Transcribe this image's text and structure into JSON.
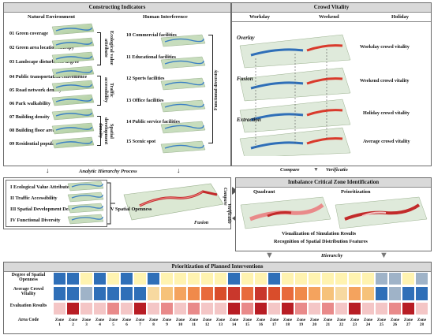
{
  "constructing": {
    "title": "Constructing Indicators",
    "natural_env": "Natural Environment",
    "human_interf": "Human Interference",
    "indicators_left": [
      "01 Green coverage",
      "02 Green area location entropy",
      "03 Landscape disturbance degree",
      "04 Public transportation convenience",
      "05 Road network density",
      "06 Park walkability",
      "07 Building density",
      "08 Building floor area ratio",
      "09 Residential population density"
    ],
    "indicators_right": [
      "10 Commercial facilities",
      "11 Educational facilities",
      "12 Sports facilities",
      "13 Office facilities",
      "14 Public service facilities",
      "15 Scenic spot"
    ],
    "group_ecological": "Ecological value attribute",
    "group_traffic": "Traffic accessibility",
    "group_spatial": "Spatial development density",
    "group_functional": "Functional diversity",
    "ahp": "Analytic Hierarchy Process",
    "dims": [
      "I  Ecological Value Attribute",
      "II  Traffic Accessibility",
      "III  Spatial Development Density",
      "IV  Functional Diversity"
    ],
    "openness": "V  Spatial Openness",
    "fusion": "Fusion"
  },
  "crowd": {
    "title": "Crowd Vitality",
    "workday": "Workday",
    "weekend": "Weekend",
    "holiday": "Holiday",
    "overlay": "Overlay",
    "fusion": "Fusion",
    "extraction": "Extraction",
    "labels": [
      "Workday crowd vitality",
      "Weekend crowd vitality",
      "Holiday crowd vitality",
      "Average crowd vitality"
    ],
    "compare": "Compare",
    "verification": "Verificatio"
  },
  "imbalance": {
    "title": "Imbalance Critical Zone Identification",
    "quadrant": "Quadrant",
    "prioritization": "Prioritization",
    "result1": "Visualization of Simulation Results",
    "result2": "Recognition of Spatial Distribution Features",
    "hierarchy": "Hierarchy"
  },
  "side": {
    "compare": "Compare",
    "verificatio": "Verificatio"
  },
  "table": {
    "title": "Prioritization of Planned Interventions",
    "row_labels": [
      "Degree of Spatial Openness",
      "Average Crowd Vitality",
      "Evaluation Results",
      "Area Code"
    ],
    "zones": [
      "Zone 1",
      "Zone 2",
      "Zone 3",
      "Zone 4",
      "Zone 5",
      "Zone 6",
      "Zone 7",
      "Zone 8",
      "Zone 9",
      "Zone 10",
      "Zone 11",
      "Zone 12",
      "Zone 13",
      "Zone 14",
      "Zone 15",
      "Zone 16",
      "Zone 17",
      "Zone 18",
      "Zone 19",
      "Zone 20",
      "Zone 21",
      "Zone 22",
      "Zone 23",
      "Zone 24",
      "Zone 25",
      "Zone 26",
      "Zone 27",
      "Zone 28"
    ],
    "row_openness": [
      "#2f6fb8",
      "#2f6fb8",
      "#fff3b0",
      "#2f6fb8",
      "#fff3b0",
      "#2f6fb8",
      "#fff3b0",
      "#2f6fb8",
      "#fff3b0",
      "#fff3b0",
      "#fff3b0",
      "#fff3b0",
      "#fff3b0",
      "#2f6fb8",
      "#fff3b0",
      "#fff3b0",
      "#2f6fb8",
      "#fff3b0",
      "#fff3b0",
      "#fff3b0",
      "#fff3b0",
      "#fff3b0",
      "#fff3b0",
      "#fff3b0",
      "#9fb3c8",
      "#9fb3c8",
      "#fff3b0",
      "#9fb3c8"
    ],
    "row_vitality": [
      "#2f6fb8",
      "#2f6fb8",
      "#9fb3c8",
      "#2f6fb8",
      "#2f6fb8",
      "#2f6fb8",
      "#2f6fb8",
      "#f7d9a0",
      "#f6c27a",
      "#f4a35e",
      "#f08a4b",
      "#e86a3c",
      "#d94d2b",
      "#c9372c",
      "#e86a3c",
      "#c9372c",
      "#d94d2b",
      "#e86a3c",
      "#f08a4b",
      "#f4a35e",
      "#f6c27a",
      "#f7d9a0",
      "#f4a35e",
      "#f6c27a",
      "#2f6fb8",
      "#9fb3c8",
      "#2f6fb8",
      "#2f6fb8"
    ],
    "row_eval": [
      "#f4c6c6",
      "#b81d24",
      "#f4c6c6",
      "#f4c6c6",
      "#e98a8a",
      "#f4c6c6",
      "#b81d24",
      "#f4c6c6",
      "#e98a8a",
      "#f4c6c6",
      "#e98a8a",
      "#f4c6c6",
      "#f4c6c6",
      "#b81d24",
      "#e98a8a",
      "#b81d24",
      "#f4c6c6",
      "#b81d24",
      "#e98a8a",
      "#f4c6c6",
      "#e98a8a",
      "#f4c6c6",
      "#b81d24",
      "#f4c6c6",
      "#f4c6c6",
      "#e98a8a",
      "#b81d24",
      "#f4c6c6"
    ]
  }
}
